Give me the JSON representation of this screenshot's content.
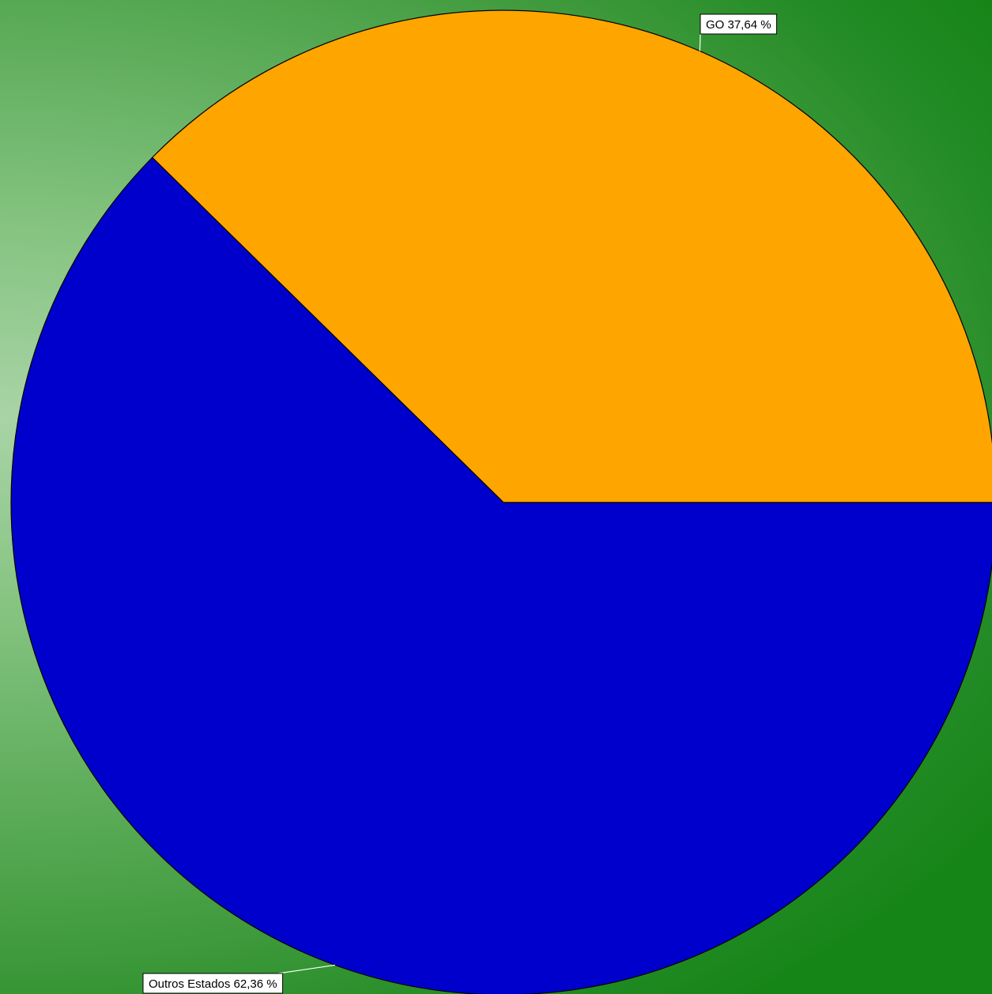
{
  "chart_data": {
    "type": "pie",
    "slices": [
      {
        "label": "GO",
        "value": 37.64,
        "display": "GO 37,64 %",
        "color": "#ffa500"
      },
      {
        "label": "Outros Estados",
        "value": 62.36,
        "display": "Outros Estados 62,36 %",
        "color": "#0000cc"
      }
    ],
    "legend": "none",
    "labels": "outside-callout",
    "background": "green-gradient"
  }
}
